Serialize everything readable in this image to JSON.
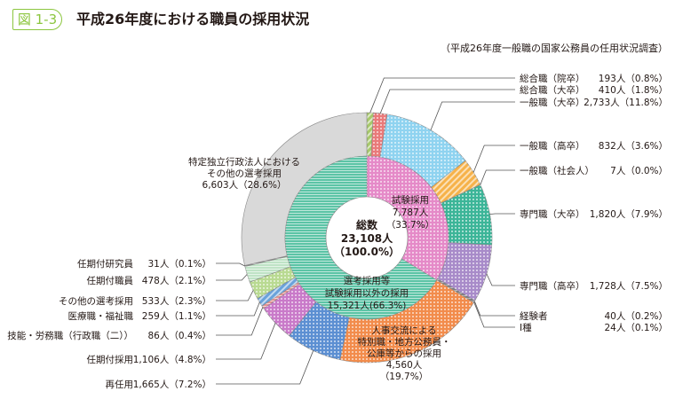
{
  "header": {
    "badge": "図 1-3",
    "title": "平成26年度における職員の採用状況",
    "source": "（平成26年度一般職の国家公務員の任用状況調査）"
  },
  "chart_data": {
    "type": "pie",
    "title": "平成26年度における職員の採用状況",
    "center": {
      "label": "総数",
      "value": "23,108人",
      "pct": "（100.0%）"
    },
    "total": 23108,
    "inner": [
      {
        "name": "試験採用",
        "count": 7787,
        "value": "7,787人",
        "pct": "（33.7%）",
        "color": "#e58ac8"
      },
      {
        "name1": "選考採用等",
        "name2": "試験採用以外の採用",
        "count": 15321,
        "value": "15,321人(66.3%)",
        "color": "#5cc4a6"
      }
    ],
    "outer": [
      {
        "name": "総合職（院卒）",
        "count": 193,
        "value": "193人（0.8%）",
        "color": "#a6c86a"
      },
      {
        "name": "総合職（大卒）",
        "count": 410,
        "value": "410人（1.8%）",
        "color": "#e97a7a"
      },
      {
        "name": "一般職（大卒）",
        "count": 2733,
        "value": "2,733人（11.8%）",
        "color": "#8fd3f0"
      },
      {
        "name": "一般職（高卒）",
        "count": 832,
        "value": "832人（3.6%）",
        "color": "#f6b24a"
      },
      {
        "name": "一般職（社会人）",
        "count": 7,
        "value": "7人（0.0%）",
        "color": "#f6b24a"
      },
      {
        "name": "専門職（大卒）",
        "count": 1820,
        "value": "1,820人（7.9%）",
        "color": "#3cb598"
      },
      {
        "name": "専門職（高卒）",
        "count": 1728,
        "value": "1,728人（7.5%）",
        "color": "#a88bc9"
      },
      {
        "name": "経験者",
        "count": 40,
        "value": "40人（0.2%）",
        "color": "#777777"
      },
      {
        "name": "Ⅰ種",
        "count": 24,
        "value": "24人（0.1%）",
        "color": "#777777"
      },
      {
        "name": "人事交流による特別職・地方公務員・公庫等からの採用",
        "lines": [
          "人事交流による",
          "特別職・地方公務員・",
          "公庫等からの採用",
          "4,560人",
          "（19.7%）"
        ],
        "count": 4560,
        "color": "#f28c4c"
      },
      {
        "name": "再任用",
        "count": 1665,
        "value": "1,665人（7.2%）",
        "color": "#5c8fd2"
      },
      {
        "name": "任期付採用",
        "count": 1106,
        "value": "1,106人（4.8%）",
        "color": "#c97ac9"
      },
      {
        "name": "技能・労務職（行政職（二））",
        "count": 86,
        "value": "86人（0.4%）",
        "color": "#e89292"
      },
      {
        "name": "医療職・福祉職",
        "count": 259,
        "value": "259人（1.1%）",
        "color": "#6aa2da"
      },
      {
        "name": "その他の選考採用",
        "count": 533,
        "value": "533人（2.3%）",
        "color": "#b9da92"
      },
      {
        "name": "任期付職員",
        "count": 478,
        "value": "478人（2.1%）",
        "color": "#bfe3c6"
      },
      {
        "name": "任期付研究員",
        "count": 31,
        "value": "31人（0.1%）",
        "color": "#888888"
      },
      {
        "name": "特定独立行政法人におけるその他の選考採用",
        "lines": [
          "特定独立行政法人における",
          "その他の選考採用",
          "6,603人（28.6%）"
        ],
        "count": 6603,
        "color": "#d9d9d9"
      }
    ]
  }
}
